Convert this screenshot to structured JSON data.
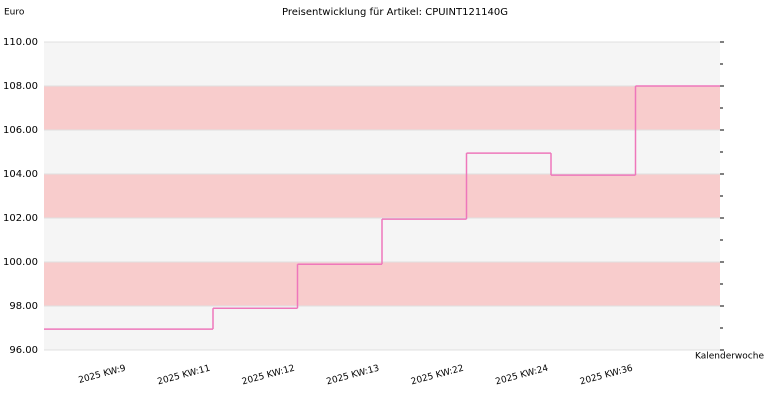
{
  "chart_data": {
    "type": "step",
    "title": "Preisentwicklung für Artikel: CPUINT121140G",
    "y_label": "Euro",
    "x_label": "Kalenderwoche",
    "categories": [
      "2025 KW:9",
      "2025 KW:11",
      "2025 KW:12",
      "2025 KW:13",
      "2025 KW:22",
      "2025 KW:24",
      "2025 KW:36",
      null
    ],
    "values": [
      96.95,
      96.95,
      97.9,
      99.9,
      101.95,
      104.95,
      103.95,
      108
    ],
    "color": "#ee77bb",
    "band_colors": [
      "#f5f5f5",
      "#f8cccc"
    ],
    "ylim": [
      96,
      110
    ],
    "yticks": [
      {
        "value": 96,
        "label": "96.00"
      },
      {
        "value": 98,
        "label": "98.00"
      },
      {
        "value": 100,
        "label": "100.00"
      },
      {
        "value": 102,
        "label": "102.00"
      },
      {
        "value": 104,
        "label": "104.00"
      },
      {
        "value": 106,
        "label": "106.00"
      },
      {
        "value": 108,
        "label": "108.00"
      },
      {
        "value": 110,
        "label": "110.00"
      }
    ],
    "grid": true
  }
}
